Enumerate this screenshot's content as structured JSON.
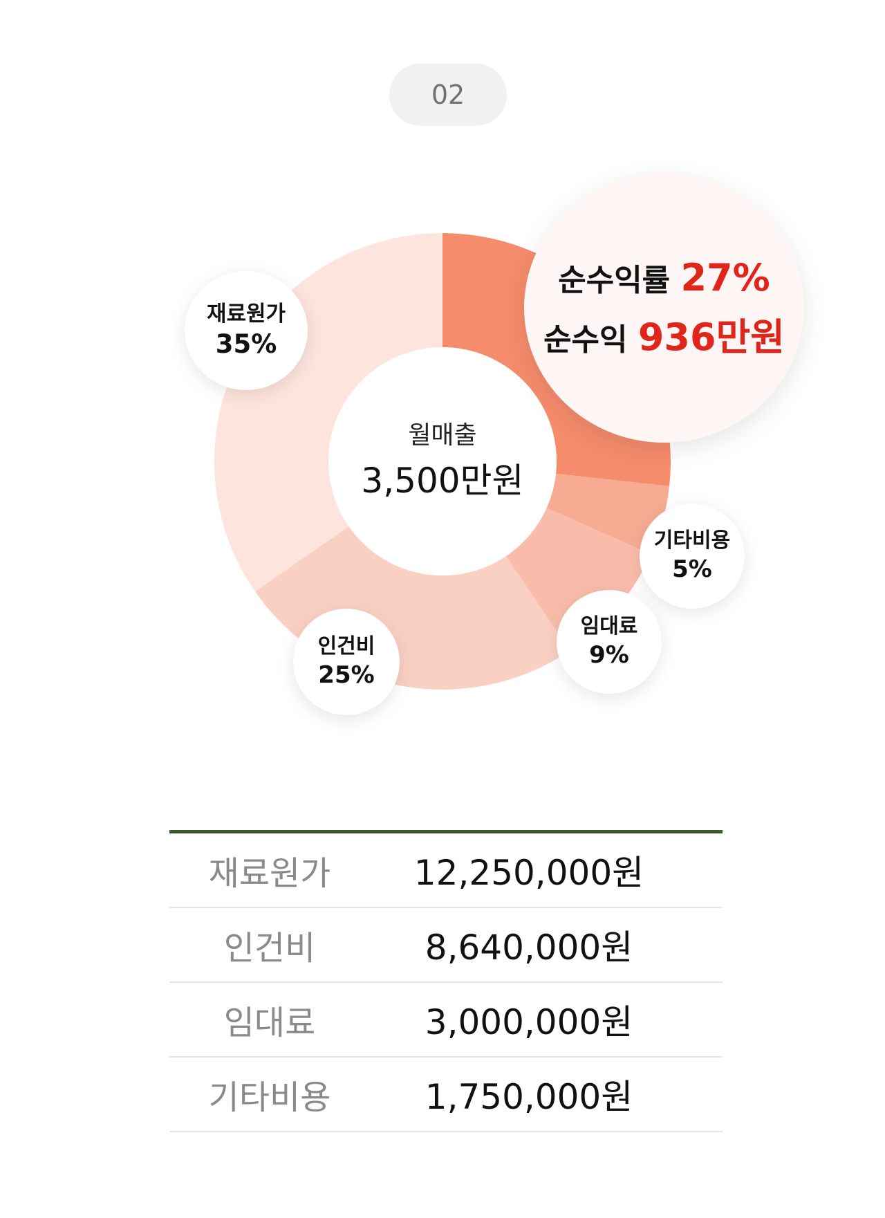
{
  "step_badge": "02",
  "center": {
    "label": "월매출",
    "value": "3,500만원"
  },
  "profit": {
    "rate_label": "순수익률",
    "rate_value": "27%",
    "amount_label": "순수익",
    "amount_value": "936만원"
  },
  "bubbles": [
    {
      "category": "재료원가",
      "percent": "35%"
    },
    {
      "category": "인건비",
      "percent": "25%"
    },
    {
      "category": "임대료",
      "percent": "9%"
    },
    {
      "category": "기타비용",
      "percent": "5%"
    }
  ],
  "chart_data": {
    "type": "pie",
    "title": "",
    "center_text": "월매출 3,500만원",
    "slices": [
      {
        "label": "순수익",
        "value": 27,
        "color": "#f58c6c"
      },
      {
        "label": "기타비용",
        "value": 5,
        "color": "#f7ab93"
      },
      {
        "label": "임대료",
        "value": 9,
        "color": "#f9bcaa"
      },
      {
        "label": "인건비",
        "value": 25,
        "color": "#fad0c3"
      },
      {
        "label": "재료원가",
        "value": 35,
        "color": "#fde4dc"
      }
    ]
  },
  "table": {
    "rows": [
      {
        "label": "재료원가",
        "value": "12,250,000원"
      },
      {
        "label": "인건비",
        "value": "8,640,000원"
      },
      {
        "label": "임대료",
        "value": "3,000,000원"
      },
      {
        "label": "기타비용",
        "value": "1,750,000원"
      }
    ]
  }
}
